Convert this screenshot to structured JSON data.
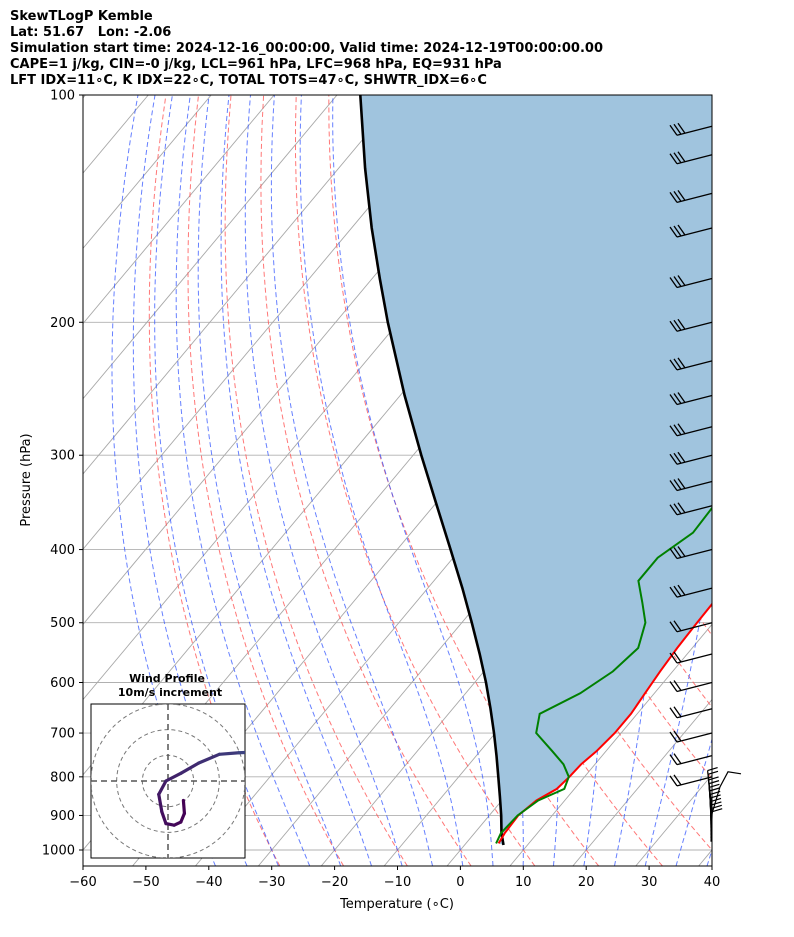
{
  "header": {
    "line1": "SkewTLogP Kemble",
    "line2": "Lat: 51.67   Lon: -2.06",
    "line3": "Simulation start time: 2024-12-16_00:00:00, Valid time: 2024-12-19T00:00:00.00",
    "line4": "CAPE=1 j/kg, CIN=-0 j/kg, LCL=961 hPa, LFC=968 hPa, EQ=931 hPa",
    "line5": "LFT IDX=11∘C, K IDX=22∘C, TOTAL TOTS=47∘C, SHWTR_IDX=6∘C"
  },
  "colors": {
    "temperature": "#ff0000",
    "dewpoint": "#008000",
    "parcel": "#000000",
    "fill": "#a0c4de",
    "dry_adiabat": "#ff5555",
    "moist_adiabat": "#3355ff",
    "mixing_ratio": "#a040c0",
    "isotherm": "#999999"
  },
  "chart_data": {
    "type": "skewt",
    "xlabel": "Temperature (∘C)",
    "ylabel": "Pressure (hPa)",
    "xlim": [
      -60,
      40
    ],
    "ylim": [
      1050,
      100
    ],
    "x_ticks": [
      -60,
      -50,
      -40,
      -30,
      -20,
      -10,
      0,
      10,
      20,
      30,
      40
    ],
    "x_tick_labels": [
      "−60",
      "−50",
      "−40",
      "−30",
      "−20",
      "−10",
      "0",
      "10",
      "20",
      "30",
      "40"
    ],
    "y_ticks": [
      1000,
      900,
      800,
      700,
      600,
      500,
      400,
      300,
      200,
      100
    ],
    "y_tick_labels": [
      "1000",
      "900",
      "800",
      "700",
      "600",
      "500",
      "400",
      "300",
      "200",
      "100"
    ],
    "grid": true,
    "temperature": [
      {
        "p": 980,
        "t": 5.2
      },
      {
        "p": 950,
        "t": 4.8
      },
      {
        "p": 900,
        "t": 4.6
      },
      {
        "p": 860,
        "t": 5.5
      },
      {
        "p": 830,
        "t": 7.2
      },
      {
        "p": 800,
        "t": 7.6
      },
      {
        "p": 770,
        "t": 7.8
      },
      {
        "p": 740,
        "t": 8.5
      },
      {
        "p": 700,
        "t": 9.0
      },
      {
        "p": 660,
        "t": 9.0
      },
      {
        "p": 620,
        "t": 8.5
      },
      {
        "p": 580,
        "t": 8.0
      },
      {
        "p": 540,
        "t": 7.6
      },
      {
        "p": 500,
        "t": 7.4
      },
      {
        "p": 470,
        "t": 7.3
      },
      {
        "p": 440,
        "t": 7.3
      },
      {
        "p": 410,
        "t": 7.0
      },
      {
        "p": 380,
        "t": 6.5
      },
      {
        "p": 350,
        "t": 6.0
      },
      {
        "p": 330,
        "t": 6.6
      },
      {
        "p": 300,
        "t": 10.0
      },
      {
        "p": 270,
        "t": 14.0
      },
      {
        "p": 250,
        "t": 16.5
      },
      {
        "p": 230,
        "t": 16.5
      },
      {
        "p": 210,
        "t": 16.0
      },
      {
        "p": 190,
        "t": 16.5
      },
      {
        "p": 175,
        "t": 16.5
      },
      {
        "p": 160,
        "t": 16.0
      },
      {
        "p": 145,
        "t": 15.5
      },
      {
        "p": 130,
        "t": 14.5
      },
      {
        "p": 115,
        "t": 13.0
      },
      {
        "p": 100,
        "t": 11.5
      }
    ],
    "dewpoint": [
      {
        "p": 980,
        "t": 4.8
      },
      {
        "p": 950,
        "t": 4.2
      },
      {
        "p": 900,
        "t": 4.5
      },
      {
        "p": 860,
        "t": 5.8
      },
      {
        "p": 830,
        "t": 8.4
      },
      {
        "p": 800,
        "t": 7.5
      },
      {
        "p": 770,
        "t": 5.0
      },
      {
        "p": 740,
        "t": 1.5
      },
      {
        "p": 700,
        "t": -3.5
      },
      {
        "p": 660,
        "t": -5.5
      },
      {
        "p": 620,
        "t": -1.8
      },
      {
        "p": 580,
        "t": 0.5
      },
      {
        "p": 540,
        "t": 1.4
      },
      {
        "p": 500,
        "t": -0.8
      },
      {
        "p": 470,
        "t": -4.0
      },
      {
        "p": 440,
        "t": -7.5
      },
      {
        "p": 410,
        "t": -7.5
      },
      {
        "p": 380,
        "t": -5.2
      },
      {
        "p": 350,
        "t": -5.5
      },
      {
        "p": 320,
        "t": -8.5
      },
      {
        "p": 300,
        "t": -11.0
      },
      {
        "p": 280,
        "t": -13.5
      },
      {
        "p": 260,
        "t": -14.0
      },
      {
        "p": 240,
        "t": -16.0
      },
      {
        "p": 220,
        "t": -18.5
      },
      {
        "p": 200,
        "t": -22.0
      },
      {
        "p": 180,
        "t": -24.8
      },
      {
        "p": 160,
        "t": -25.2
      },
      {
        "p": 140,
        "t": -24.5
      },
      {
        "p": 125,
        "t": -21.0
      },
      {
        "p": 112,
        "t": -17.5
      },
      {
        "p": 100,
        "t": -15.5
      }
    ],
    "parcel": [
      {
        "p": 985,
        "t": 6.2
      },
      {
        "p": 950,
        "t": 4.3
      },
      {
        "p": 900,
        "t": 1.9
      },
      {
        "p": 850,
        "t": -0.8
      },
      {
        "p": 800,
        "t": -3.7
      },
      {
        "p": 750,
        "t": -6.8
      },
      {
        "p": 700,
        "t": -10.2
      },
      {
        "p": 650,
        "t": -14.0
      },
      {
        "p": 600,
        "t": -18.2
      },
      {
        "p": 550,
        "t": -23.0
      },
      {
        "p": 500,
        "t": -28.4
      },
      {
        "p": 450,
        "t": -34.5
      },
      {
        "p": 400,
        "t": -41.5
      },
      {
        "p": 350,
        "t": -49.5
      },
      {
        "p": 300,
        "t": -58.7
      },
      {
        "p": 250,
        "t": -69.3
      },
      {
        "p": 200,
        "t": -81.7
      },
      {
        "p": 175,
        "t": -88.8
      },
      {
        "p": 150,
        "t": -96.8
      },
      {
        "p": 125,
        "t": -105.8
      },
      {
        "p": 100,
        "t": -116.3
      }
    ],
    "wind_barb_pressures": [
      975,
      965,
      955,
      945,
      935,
      925,
      915,
      905,
      895,
      885,
      870,
      860,
      800,
      750,
      700,
      650,
      600,
      550,
      500,
      450,
      400,
      350,
      325,
      300,
      275,
      250,
      225,
      200,
      175,
      150,
      135,
      120,
      110
    ],
    "hodograph": {
      "title": "Wind Profile",
      "subtitle": "10m/s increment",
      "u": [
        3.0,
        3.2,
        2.5,
        1.2,
        -0.4,
        -1.2,
        -1.8,
        -0.4,
        2.5,
        6.0,
        10.0,
        13.8,
        16.0,
        17.0,
        18.0,
        18.5,
        19.0,
        19.5,
        20.2,
        21.0,
        22.0,
        23.0,
        23.5,
        24.0,
        24.5,
        25.0,
        24.6,
        23.8,
        23.2,
        23.8,
        24.8,
        25.5
      ],
      "v": [
        -3.8,
        -6.3,
        -8.0,
        -8.6,
        -8.3,
        -6.0,
        -2.6,
        0.0,
        1.5,
        3.5,
        5.2,
        5.5,
        5.6,
        6.0,
        7.5,
        8.5,
        8.0,
        9.0,
        10.2,
        10.0,
        10.5,
        12.0,
        14.0,
        16.0,
        16.5,
        17.0,
        5.5,
        3.0,
        1.0,
        4.0,
        5.5,
        7.5
      ],
      "range": [
        -15,
        15
      ],
      "rings": [
        5,
        10,
        15
      ]
    }
  }
}
